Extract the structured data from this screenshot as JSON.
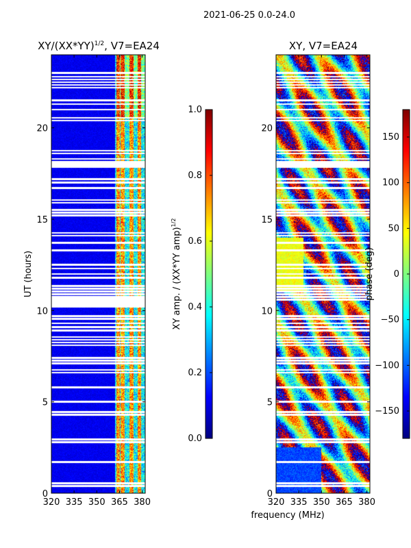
{
  "figure": {
    "suptitle": "2021-06-25 0.0-24.0",
    "xlabel_shared": "frequency (MHz)"
  },
  "colors": {
    "jet": [
      "#00007f",
      "#0000ff",
      "#007fff",
      "#00ffff",
      "#7fff7f",
      "#ffff00",
      "#ff7f00",
      "#ff0000",
      "#7f0000"
    ],
    "background": "#ffffff",
    "axis": "#000000"
  },
  "chart_data": [
    {
      "type": "heatmap",
      "title_main": "XY/(XX*YY)",
      "title_sup": "1/2",
      "title_suffix": ", V7=EA24",
      "xlabel": "",
      "ylabel": "UT (hours)",
      "xlim": [
        320,
        382
      ],
      "ylim": [
        0,
        24
      ],
      "xticks": [
        320,
        335,
        350,
        365,
        380
      ],
      "yticks": [
        0,
        5,
        10,
        15,
        20
      ],
      "colorbar": {
        "label_main": "XY amp. / (XX*YY amp)",
        "label_sup": "1/2",
        "range": [
          0.0,
          1.0
        ],
        "ticks": [
          "0.0",
          "0.2",
          "0.4",
          "0.6",
          "0.8",
          "1.0"
        ]
      },
      "flagged_hours": [
        0.4,
        0.55,
        1.7,
        2.8,
        2.95,
        4.3,
        4.45,
        5.0,
        5.8,
        6.6,
        6.75,
        7.1,
        7.25,
        7.4,
        8.1,
        8.25,
        8.4,
        8.55,
        8.9,
        9.1,
        9.3,
        9.55,
        9.7,
        10.6,
        10.75,
        10.9,
        11.05,
        11.2,
        11.35,
        11.8,
        12.0,
        12.3,
        12.5,
        13.3,
        13.7,
        14.1,
        14.25,
        15.2,
        15.35,
        15.5,
        15.9,
        16.05,
        16.7,
        17.0,
        17.2,
        17.85,
        18.0,
        18.15,
        18.3,
        18.6,
        18.75,
        20.4,
        20.55,
        21.0,
        21.3,
        21.5,
        22.2,
        22.35,
        22.5,
        22.65,
        22.8,
        23.0
      ],
      "flagged_bands": [
        [
          10.15,
          10.75
        ],
        [
          17.8,
          18.2
        ]
      ],
      "signal_channels_mhz": [
        364,
        367,
        373,
        378
      ]
    },
    {
      "type": "heatmap",
      "title": "XY, V7=EA24",
      "xlabel": "",
      "ylabel": "",
      "xlim": [
        320,
        382
      ],
      "ylim": [
        0,
        24
      ],
      "xticks": [
        320,
        335,
        350,
        365,
        380
      ],
      "yticks": [
        0,
        5,
        10,
        15,
        20
      ],
      "colorbar": {
        "label": "phase (deg)",
        "range": [
          -180,
          180
        ],
        "ticks": [
          "150",
          "100",
          "50",
          "0",
          "−50",
          "−100",
          "−150"
        ],
        "tick_values": [
          150,
          100,
          50,
          0,
          -50,
          -100,
          -150
        ]
      },
      "flagged_hours": [
        0.4,
        0.55,
        1.7,
        2.8,
        2.95,
        4.3,
        4.45,
        5.0,
        5.8,
        6.6,
        6.75,
        7.1,
        7.25,
        7.4,
        8.1,
        8.25,
        8.4,
        8.55,
        8.9,
        9.1,
        9.3,
        9.55,
        9.7,
        10.6,
        10.75,
        10.9,
        11.05,
        11.2,
        11.35,
        11.8,
        12.0,
        12.3,
        12.5,
        13.3,
        13.7,
        14.1,
        14.25,
        15.2,
        15.35,
        15.5,
        15.9,
        16.05,
        16.7,
        17.0,
        17.2,
        17.85,
        18.0,
        18.15,
        18.3,
        18.6,
        18.75,
        20.4,
        20.55,
        21.0,
        21.3,
        21.5,
        22.2,
        22.35,
        22.5,
        22.65,
        22.8,
        23.0
      ],
      "flagged_bands": [
        [
          17.8,
          18.2
        ]
      ]
    }
  ]
}
